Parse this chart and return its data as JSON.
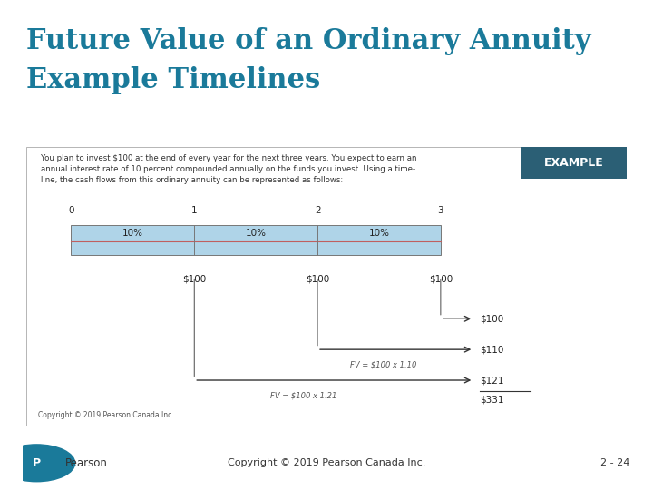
{
  "title_line1": "Future Value of an Ordinary Annuity",
  "title_line2": "Example Timelines",
  "title_color": "#1a7a9a",
  "bg_color": "#ffffff",
  "slide_bg": "#d6eaf5",
  "example_box_color": "#2b5f75",
  "example_text": "EXAMPLE",
  "body_text_l1": "You plan to invest $100 at the end of every year for the next three years. You expect to earn an",
  "body_text_l2": "annual interest rate of 10 percent compounded annually on the funds you invest. Using a time-",
  "body_text_l3": "line, the cash flows from this ordinary annuity can be represented as follows:",
  "period_labels": [
    "0",
    "1",
    "2",
    "3"
  ],
  "rate_labels": [
    "10%",
    "10%",
    "10%"
  ],
  "cashflow_labels": [
    "$100",
    "$100",
    "$100"
  ],
  "fv_labels": [
    "$100",
    "$110",
    "$121"
  ],
  "fv_formula1": "FV = $100 x 1.10",
  "fv_formula2": "FV = $100 x 1.21",
  "total_label": "$331",
  "copyright_slide": "Copyright © 2019 Pearson Canada Inc.",
  "footer_copyright": "Copyright © 2019 Pearson Canada Inc.",
  "footer_page": "2 - 24",
  "timeline_bar_fill": "#afd4e8",
  "timeline_divider_color": "#c06060",
  "text_color": "#333333",
  "formula_color": "#555555",
  "arrow_color": "#333333"
}
